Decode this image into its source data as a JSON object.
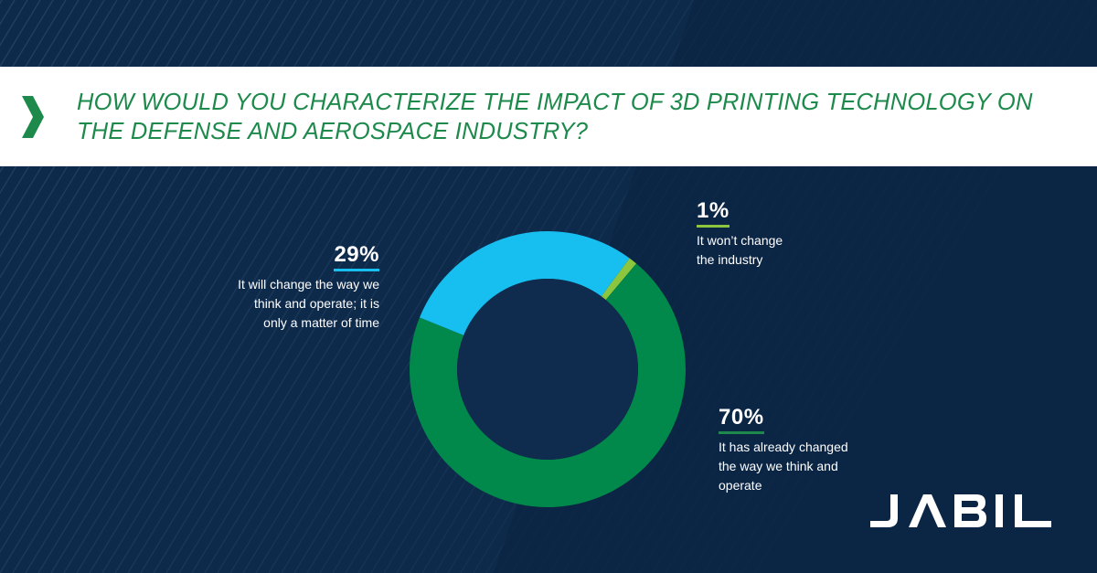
{
  "question": "HOW WOULD YOU CHARACTERIZE THE IMPACT OF 3D PRINTING TECHNOLOGY ON THE DEFENSE AND AEROSPACE INDUSTRY?",
  "brand": "JABIL",
  "colors": {
    "background": "#0e2a4b",
    "accent_green": "#1d8a4c",
    "light_blue": "#17bef0",
    "lime": "#8cc63e",
    "title_band": "#ffffff"
  },
  "chart_data": {
    "type": "pie",
    "style": "donut",
    "slices": [
      {
        "label": "It won’t change the industry",
        "value": 1,
        "display": "1%",
        "color": "#8cc63e"
      },
      {
        "label": "It has already changed the way we think and operate",
        "value": 70,
        "display": "70%",
        "color": "#00894a"
      },
      {
        "label": "It will change the way we think and operate; it is only a matter of time",
        "value": 29,
        "display": "29%",
        "color": "#17bef0"
      }
    ],
    "legend": "none",
    "units": "%"
  },
  "labels": {
    "won_t_change": {
      "pct": "1%",
      "lines": [
        "It won’t change",
        "the industry"
      ]
    },
    "already_changed": {
      "pct": "70%",
      "lines": [
        "It has already changed",
        "the way we think and",
        "operate"
      ]
    },
    "will_change": {
      "pct": "29%",
      "lines": [
        "It will change the way we",
        "think and operate; it is",
        "only a matter of time"
      ]
    }
  }
}
